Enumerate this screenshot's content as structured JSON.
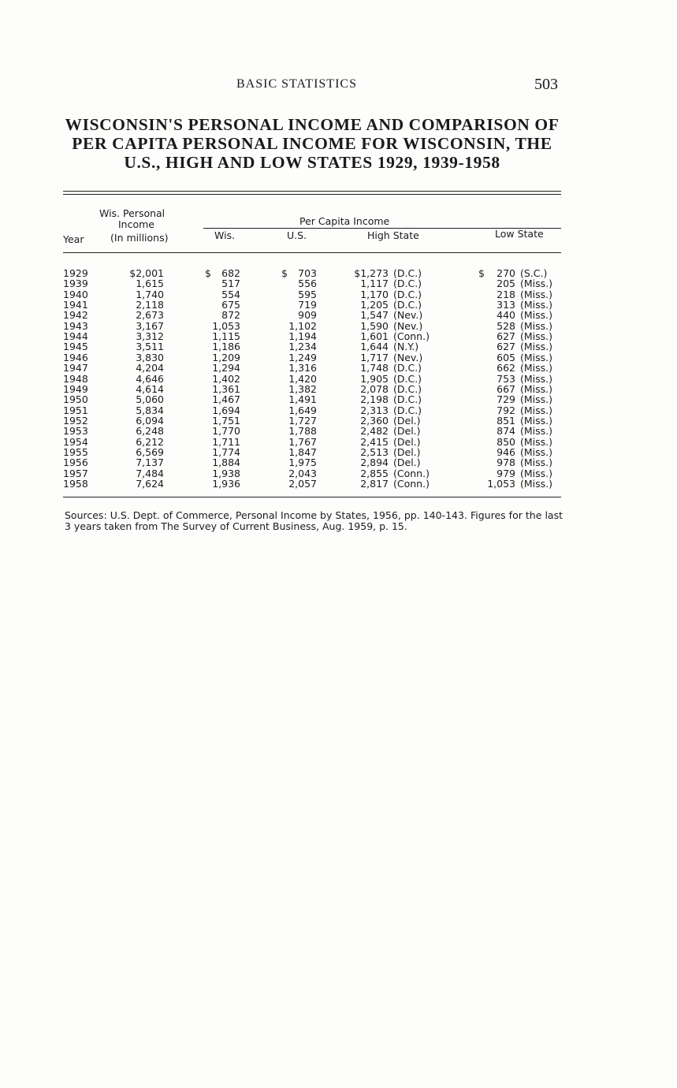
{
  "running_head": "BASIC STATISTICS",
  "page_number": "503",
  "title": "WISCONSIN'S PERSONAL INCOME AND COMPARISON OF PER CAPITA PERSONAL INCOME FOR WISCONSIN, THE U.S., HIGH AND LOW STATES 1929, 1939-1958",
  "headers": {
    "year": "Year",
    "wis_personal_1": "Wis. Personal",
    "wis_personal_2": "Income",
    "wis_personal_3": "(In millions)",
    "per_capita": "Per Capita Income",
    "wis": "Wis.",
    "us": "U.S.",
    "high": "High State",
    "low": "Low State"
  },
  "rows": [
    {
      "year": "1929",
      "income": "$2,001",
      "wis_d": "$",
      "wis": "682",
      "us_d": "$",
      "us": "703",
      "high": "$1,273",
      "high_state": "(D.C.)",
      "low_d": "$",
      "low": "270",
      "low_state": "(S.C.)"
    },
    {
      "year": "1939",
      "income": "1,615",
      "wis": "517",
      "us": "556",
      "high": "1,117",
      "high_state": "(D.C.)",
      "low": "205",
      "low_state": "(Miss.)"
    },
    {
      "year": "1940",
      "income": "1,740",
      "wis": "554",
      "us": "595",
      "high": "1,170",
      "high_state": "(D.C.)",
      "low": "218",
      "low_state": "(Miss.)"
    },
    {
      "year": "1941",
      "income": "2,118",
      "wis": "675",
      "us": "719",
      "high": "1,205",
      "high_state": "(D.C.)",
      "low": "313",
      "low_state": "(Miss.)"
    },
    {
      "year": "1942",
      "income": "2,673",
      "wis": "872",
      "us": "909",
      "high": "1,547",
      "high_state": "(Nev.)",
      "low": "440",
      "low_state": "(Miss.)"
    },
    {
      "year": "1943",
      "income": "3,167",
      "wis": "1,053",
      "us": "1,102",
      "high": "1,590",
      "high_state": "(Nev.)",
      "low": "528",
      "low_state": "(Miss.)"
    },
    {
      "year": "1944",
      "income": "3,312",
      "wis": "1,115",
      "us": "1,194",
      "high": "1,601",
      "high_state": "(Conn.)",
      "low": "627",
      "low_state": "(Miss.)"
    },
    {
      "year": "1945",
      "income": "3,511",
      "wis": "1,186",
      "us": "1,234",
      "high": "1,644",
      "high_state": "(N.Y.)",
      "low": "627",
      "low_state": "(Miss.)"
    },
    {
      "year": "1946",
      "income": "3,830",
      "wis": "1,209",
      "us": "1,249",
      "high": "1,717",
      "high_state": "(Nev.)",
      "low": "605",
      "low_state": "(Miss.)"
    },
    {
      "year": "1947",
      "income": "4,204",
      "wis": "1,294",
      "us": "1,316",
      "high": "1,748",
      "high_state": "(D.C.)",
      "low": "662",
      "low_state": "(Miss.)"
    },
    {
      "year": "1948",
      "income": "4,646",
      "wis": "1,402",
      "us": "1,420",
      "high": "1,905",
      "high_state": "(D.C.)",
      "low": "753",
      "low_state": "(Miss.)"
    },
    {
      "year": "1949",
      "income": "4,614",
      "wis": "1,361",
      "us": "1,382",
      "high": "2,078",
      "high_state": "(D.C.)",
      "low": "667",
      "low_state": "(Miss.)"
    },
    {
      "year": "1950",
      "income": "5,060",
      "wis": "1,467",
      "us": "1,491",
      "high": "2,198",
      "high_state": "(D.C.)",
      "low": "729",
      "low_state": "(Miss.)"
    },
    {
      "year": "1951",
      "income": "5,834",
      "wis": "1,694",
      "us": "1,649",
      "high": "2,313",
      "high_state": "(D.C.)",
      "low": "792",
      "low_state": "(Miss.)"
    },
    {
      "year": "1952",
      "income": "6,094",
      "wis": "1,751",
      "us": "1,727",
      "high": "2,360",
      "high_state": "(Del.)",
      "low": "851",
      "low_state": "(Miss.)"
    },
    {
      "year": "1953",
      "income": "6,248",
      "wis": "1,770",
      "us": "1,788",
      "high": "2,482",
      "high_state": "(Del.)",
      "low": "874",
      "low_state": "(Miss.)"
    },
    {
      "year": "1954",
      "income": "6,212",
      "wis": "1,711",
      "us": "1,767",
      "high": "2,415",
      "high_state": "(Del.)",
      "low": "850",
      "low_state": "(Miss.)"
    },
    {
      "year": "1955",
      "income": "6,569",
      "wis": "1,774",
      "us": "1,847",
      "high": "2,513",
      "high_state": "(Del.)",
      "low": "946",
      "low_state": "(Miss.)"
    },
    {
      "year": "1956",
      "income": "7,137",
      "wis": "1,884",
      "us": "1,975",
      "high": "2,894",
      "high_state": "(Del.)",
      "low": "978",
      "low_state": "(Miss.)"
    },
    {
      "year": "1957",
      "income": "7,484",
      "wis": "1,938",
      "us": "2,043",
      "high": "2,855",
      "high_state": "(Conn.)",
      "low": "979",
      "low_state": "(Miss.)"
    },
    {
      "year": "1958",
      "income": "7,624",
      "wis": "1,936",
      "us": "2,057",
      "high": "2,817",
      "high_state": "(Conn.)",
      "low": "1,053",
      "low_state": "(Miss.)"
    }
  ],
  "sources": "Sources: U.S. Dept. of Commerce, Personal Income by States, 1956, pp. 140-143. Figures for the last 3 years taken from The Survey of Current Business, Aug. 1959, p. 15."
}
